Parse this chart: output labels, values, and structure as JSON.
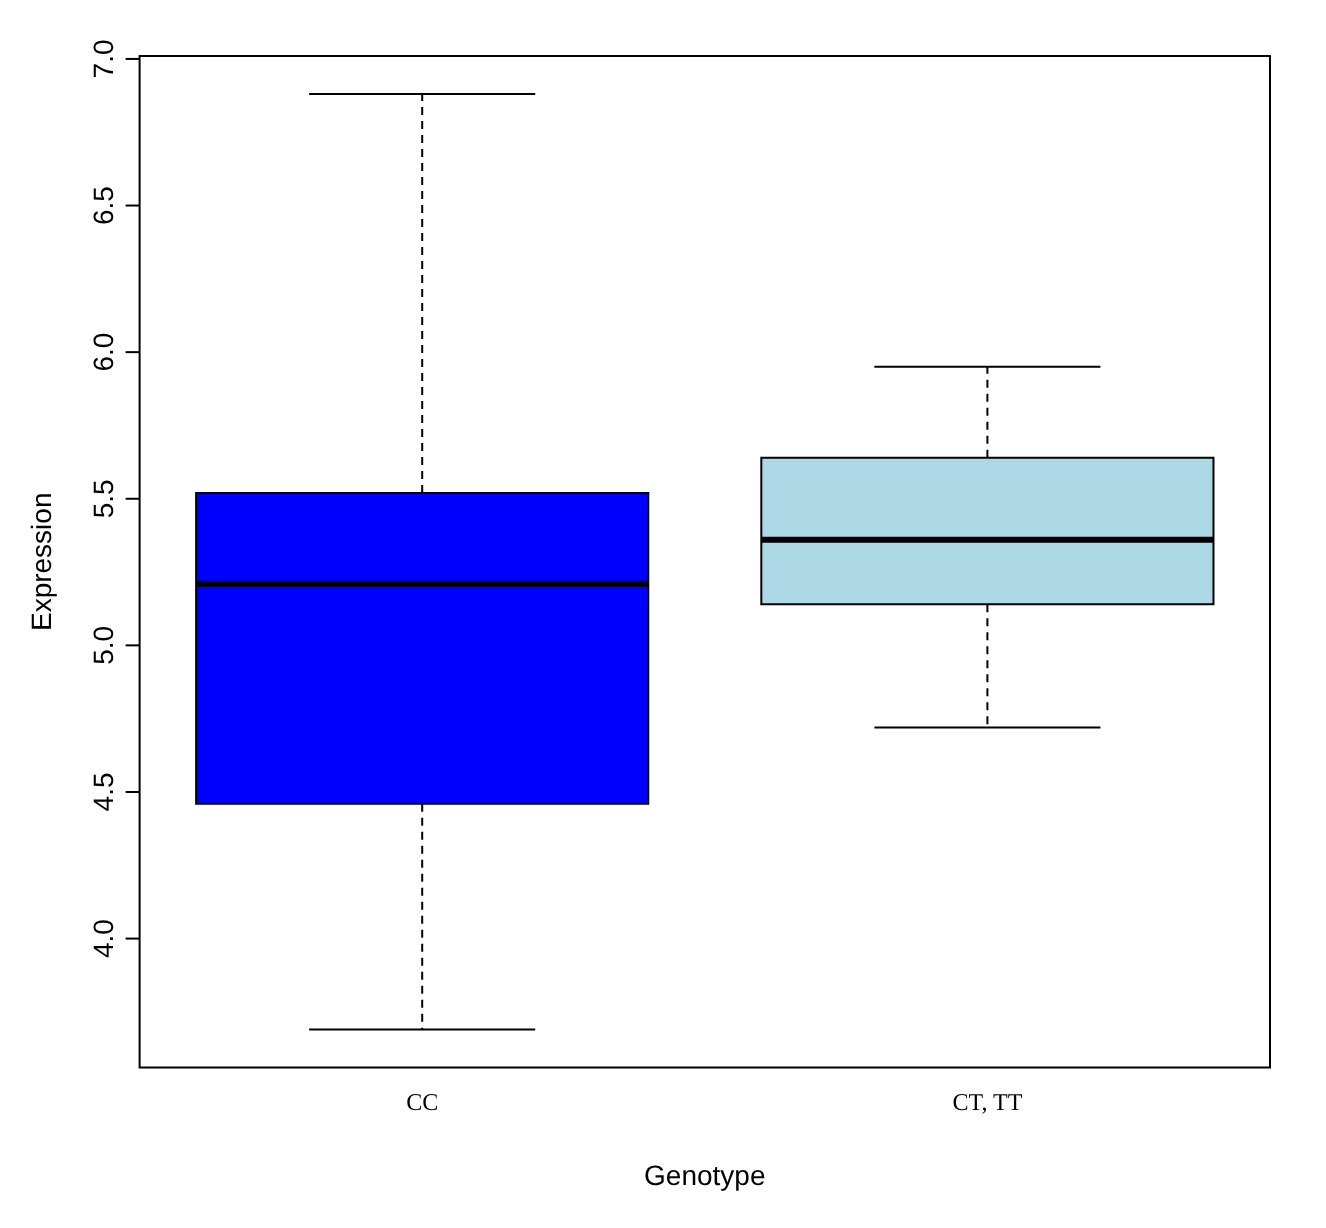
{
  "chart_data": {
    "type": "box",
    "xlabel": "Genotype",
    "ylabel": "Expression",
    "categories": [
      "CC",
      "CT, TT"
    ],
    "colors": [
      "#0000ff",
      "#add8e6"
    ],
    "boxes": [
      {
        "low": 3.69,
        "q1": 4.46,
        "median": 5.21,
        "q3": 5.52,
        "high": 6.88
      },
      {
        "low": 4.72,
        "q1": 5.14,
        "median": 5.36,
        "q3": 5.64,
        "high": 5.95
      }
    ],
    "ylim": [
      3.56,
      7.01
    ],
    "yticks": [
      {
        "value": 4,
        "label": "4.0"
      },
      {
        "value": 4.5,
        "label": "4.5"
      },
      {
        "value": 5,
        "label": "5.0"
      },
      {
        "value": 5.5,
        "label": "5.5"
      },
      {
        "value": 6,
        "label": "6.0"
      },
      {
        "value": 6.5,
        "label": "6.5"
      },
      {
        "value": 7,
        "label": "7.0"
      }
    ],
    "grid": false,
    "legend": false
  }
}
